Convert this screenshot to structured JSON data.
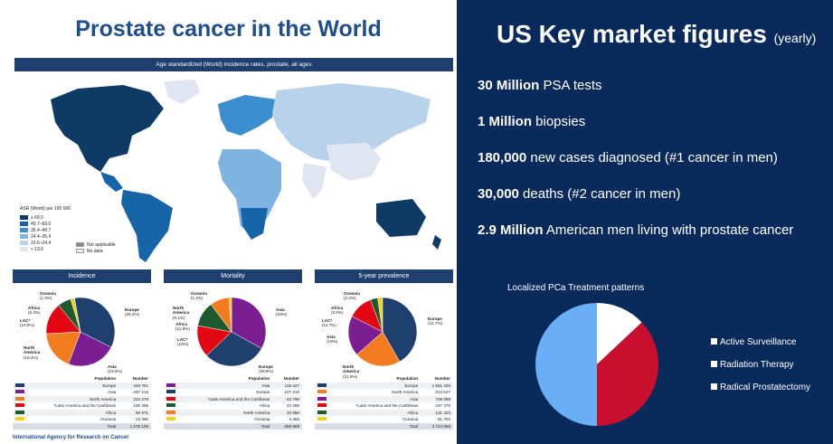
{
  "left": {
    "title": "Prostate cancer in the World",
    "map_caption": "Age standardized (World) incidence rates, prostate, all ages",
    "legend_title": "ASR (World) per 100 000",
    "legend": [
      {
        "label": "≥ 69.0",
        "color": "#0d3b66"
      },
      {
        "label": "49.7–69.0",
        "color": "#1565a8"
      },
      {
        "label": "35.4–49.7",
        "color": "#3b8ed0"
      },
      {
        "label": "24.4–35.4",
        "color": "#7fb4e0"
      },
      {
        "label": "10.6–24.4",
        "color": "#b9d2ec"
      },
      {
        "label": "< 10.6",
        "color": "#dfe6f2"
      }
    ],
    "legend_extra": [
      {
        "label": "Not applicable",
        "color": "#8a8a8a"
      },
      {
        "label": "No data",
        "color": "#eeeeee"
      }
    ],
    "footer": "International Agency for Research on Cancer",
    "panels": [
      {
        "title": "Incidence",
        "labels": [
          {
            "text": "Oceania\n(1.8%)"
          },
          {
            "text": "Africa\n(6.3%)"
          },
          {
            "text": "LAC*\n(14.9%)"
          },
          {
            "text": "North\nAmerica\n(18.4%)"
          },
          {
            "text": "Asia\n(23.3%)"
          },
          {
            "text": "Europe\n(35.2%)"
          }
        ],
        "slices": [
          {
            "name": "Europe",
            "pct": 35.2,
            "color": "#1f3f6e"
          },
          {
            "name": "Asia",
            "pct": 23.3,
            "color": "#7b1e91"
          },
          {
            "name": "North America",
            "pct": 18.4,
            "color": "#f47c20"
          },
          {
            "name": "LAC",
            "pct": 14.9,
            "color": "#e30613"
          },
          {
            "name": "Africa",
            "pct": 6.3,
            "color": "#1e5a2e"
          },
          {
            "name": "Oceania",
            "pct": 1.8,
            "color": "#f2d01b"
          }
        ],
        "header": [
          "Population",
          "Number"
        ],
        "rows": [
          {
            "pop": "Europe",
            "num": "449 761",
            "color": "#1f3f6e"
          },
          {
            "pop": "Asia",
            "num": "297 215",
            "color": "#7b1e91"
          },
          {
            "pop": "North America",
            "num": "234 278",
            "color": "#f47c20"
          },
          {
            "pop": "*Latin America and the Caribbean",
            "num": "190 385",
            "color": "#e30613"
          },
          {
            "pop": "Africa",
            "num": "80 971",
            "color": "#1e5a2e"
          },
          {
            "pop": "Oceania",
            "num": "23 496",
            "color": "#f2d01b"
          }
        ],
        "total": {
          "pop": "Total",
          "num": "1 276 106"
        }
      },
      {
        "title": "Mortality",
        "labels": [
          {
            "text": "Oceania\n(1.2%)"
          },
          {
            "text": "North\nAmerica\n(9.1%)"
          },
          {
            "text": "Africa\n(11.8%)"
          },
          {
            "text": "LAC*\n(15%)"
          },
          {
            "text": "Asia\n(33%)"
          },
          {
            "text": "Europe\n(29.9%)"
          }
        ],
        "slices": [
          {
            "name": "Asia",
            "pct": 33,
            "color": "#7b1e91"
          },
          {
            "name": "Europe",
            "pct": 29.9,
            "color": "#1f3f6e"
          },
          {
            "name": "LAC",
            "pct": 15,
            "color": "#e30613"
          },
          {
            "name": "Africa",
            "pct": 11.8,
            "color": "#1e5a2e"
          },
          {
            "name": "North America",
            "pct": 9.1,
            "color": "#f47c20"
          },
          {
            "name": "Oceania",
            "pct": 1.2,
            "color": "#f2d01b"
          }
        ],
        "header": [
          "Population",
          "Number"
        ],
        "rows": [
          {
            "pop": "Asia",
            "num": "118 427",
            "color": "#7b1e91"
          },
          {
            "pop": "Europe",
            "num": "107 315",
            "color": "#1f3f6e"
          },
          {
            "pop": "*Latin America and the Caribbean",
            "num": "53 798",
            "color": "#e30613"
          },
          {
            "pop": "Africa",
            "num": "42 298",
            "color": "#1e5a2e"
          },
          {
            "pop": "North America",
            "num": "32 686",
            "color": "#f47c20"
          },
          {
            "pop": "Oceania",
            "num": "4 465",
            "color": "#f2d01b"
          }
        ],
        "total": {
          "pop": "Total",
          "num": "358 989"
        }
      },
      {
        "title": "5-year prevalence",
        "labels": [
          {
            "text": "Oceania\n(2.2%)"
          },
          {
            "text": "Africa\n(3.5%)"
          },
          {
            "text": "LAC*\n(11.7%)"
          },
          {
            "text": "Asia\n(19%)"
          },
          {
            "text": "North\nAmerica\n(21.8%)"
          },
          {
            "text": "Europe\n(41.7%)"
          }
        ],
        "slices": [
          {
            "name": "Europe",
            "pct": 41.7,
            "color": "#1f3f6e"
          },
          {
            "name": "North America",
            "pct": 21.8,
            "color": "#f47c20"
          },
          {
            "name": "Asia",
            "pct": 19,
            "color": "#7b1e91"
          },
          {
            "name": "LAC",
            "pct": 11.7,
            "color": "#e30613"
          },
          {
            "name": "Africa",
            "pct": 3.5,
            "color": "#1e5a2e"
          },
          {
            "name": "Oceania",
            "pct": 2.2,
            "color": "#f2d01b"
          }
        ],
        "header": [
          "Population",
          "Number"
        ],
        "rows": [
          {
            "pop": "Europe",
            "num": "1 551 420",
            "color": "#1f3f6e"
          },
          {
            "pop": "North America",
            "num": "813 547",
            "color": "#f47c20"
          },
          {
            "pop": "Asia",
            "num": "709 088",
            "color": "#7b1e91"
          },
          {
            "pop": "*Latin America and the Caribbean",
            "num": "437 476",
            "color": "#e30613"
          },
          {
            "pop": "Africa",
            "num": "131 423",
            "color": "#1e5a2e"
          },
          {
            "pop": "Oceania",
            "num": "81 704",
            "color": "#f2d01b"
          }
        ],
        "total": {
          "pop": "Total",
          "num": "3 724 658"
        }
      }
    ]
  },
  "right": {
    "title": "US Key market figures",
    "title_suffix": "(yearly)",
    "figures": [
      {
        "bold": "30 Million",
        "rest": " PSA tests"
      },
      {
        "bold": "1 Million",
        "rest": " biopsies"
      },
      {
        "bold": "180,000",
        "rest": " new cases diagnosed (#1 cancer in men)"
      },
      {
        "bold": "30,000",
        "rest": " deaths (#2 cancer in men)"
      },
      {
        "bold": "2.9 Million",
        "rest": " American men living with prostate cancer"
      }
    ],
    "chart_data": {
      "type": "pie",
      "title": "Localized PCa Treatment patterns",
      "series": [
        {
          "name": "Active Surveillance",
          "value": 13,
          "color": "#ffffff"
        },
        {
          "name": "Radiation Therapy",
          "value": 37,
          "color": "#c8102e"
        },
        {
          "name": "Radical Prostatectomy",
          "value": 50,
          "color": "#6aaef5"
        }
      ],
      "legend_position": "right"
    }
  }
}
